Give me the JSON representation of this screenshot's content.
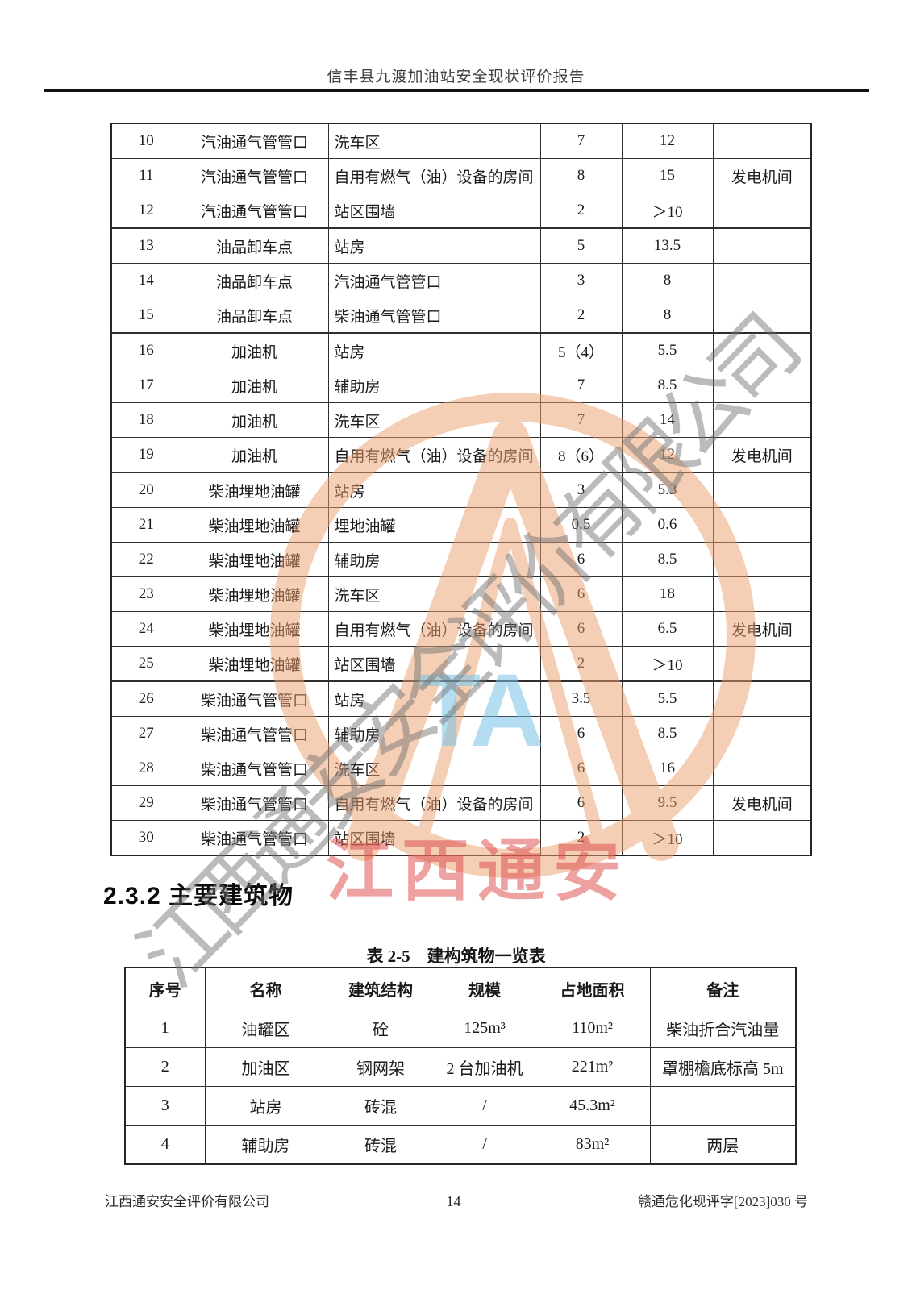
{
  "header": {
    "title": "信丰县九渡加油站安全现状评价报告"
  },
  "distance_table": {
    "columns": [
      "seq",
      "source",
      "target",
      "required",
      "actual",
      "note"
    ],
    "rows": [
      {
        "seq": "10",
        "source": "汽油通气管管口",
        "target": "洗车区",
        "required": "7",
        "actual": "12",
        "note": "",
        "group_end": false
      },
      {
        "seq": "11",
        "source": "汽油通气管管口",
        "target": "自用有燃气（油）设备的房间",
        "required": "8",
        "actual": "15",
        "note": "发电机间",
        "group_end": false
      },
      {
        "seq": "12",
        "source": "汽油通气管管口",
        "target": "站区围墙",
        "required": "2",
        "actual": "＞10",
        "note": "",
        "group_end": true
      },
      {
        "seq": "13",
        "source": "油品卸车点",
        "target": "站房",
        "required": "5",
        "actual": "13.5",
        "note": "",
        "group_end": false
      },
      {
        "seq": "14",
        "source": "油品卸车点",
        "target": "汽油通气管管口",
        "required": "3",
        "actual": "8",
        "note": "",
        "group_end": false
      },
      {
        "seq": "15",
        "source": "油品卸车点",
        "target": "柴油通气管管口",
        "required": "2",
        "actual": "8",
        "note": "",
        "group_end": true
      },
      {
        "seq": "16",
        "source": "加油机",
        "target": "站房",
        "required": "5（4）",
        "actual": "5.5",
        "note": "",
        "group_end": false
      },
      {
        "seq": "17",
        "source": "加油机",
        "target": "辅助房",
        "required": "7",
        "actual": "8.5",
        "note": "",
        "group_end": false
      },
      {
        "seq": "18",
        "source": "加油机",
        "target": "洗车区",
        "required": "7",
        "actual": "14",
        "note": "",
        "group_end": false
      },
      {
        "seq": "19",
        "source": "加油机",
        "target": "自用有燃气（油）设备的房间",
        "required": "8（6）",
        "actual": "12",
        "note": "发电机间",
        "group_end": true
      },
      {
        "seq": "20",
        "source": "柴油埋地油罐",
        "target": "站房",
        "required": "3",
        "actual": "5.3",
        "note": "",
        "group_end": false
      },
      {
        "seq": "21",
        "source": "柴油埋地油罐",
        "target": "埋地油罐",
        "required": "0.5",
        "actual": "0.6",
        "note": "",
        "group_end": false
      },
      {
        "seq": "22",
        "source": "柴油埋地油罐",
        "target": "辅助房",
        "required": "6",
        "actual": "8.5",
        "note": "",
        "group_end": false
      },
      {
        "seq": "23",
        "source": "柴油埋地油罐",
        "target": "洗车区",
        "required": "6",
        "actual": "18",
        "note": "",
        "group_end": false
      },
      {
        "seq": "24",
        "source": "柴油埋地油罐",
        "target": "自用有燃气（油）设备的房间",
        "required": "6",
        "actual": "6.5",
        "note": "发电机间",
        "group_end": false
      },
      {
        "seq": "25",
        "source": "柴油埋地油罐",
        "target": "站区围墙",
        "required": "2",
        "actual": "＞10",
        "note": "",
        "group_end": true
      },
      {
        "seq": "26",
        "source": "柴油通气管管口",
        "target": "站房",
        "required": "3.5",
        "actual": "5.5",
        "note": "",
        "group_end": false
      },
      {
        "seq": "27",
        "source": "柴油通气管管口",
        "target": "辅助房",
        "required": "6",
        "actual": "8.5",
        "note": "",
        "group_end": false
      },
      {
        "seq": "28",
        "source": "柴油通气管管口",
        "target": "洗车区",
        "required": "6",
        "actual": "16",
        "note": "",
        "group_end": false
      },
      {
        "seq": "29",
        "source": "柴油通气管管口",
        "target": "自用有燃气（油）设备的房间",
        "required": "6",
        "actual": "9.5",
        "note": "发电机间",
        "group_end": false
      },
      {
        "seq": "30",
        "source": "柴油通气管管口",
        "target": "站区围墙",
        "required": "2",
        "actual": "＞10",
        "note": "",
        "group_end": false
      }
    ]
  },
  "section_heading": {
    "text": "2.3.2 主要建筑物"
  },
  "buildings_table": {
    "title": "表 2-5　建构筑物一览表",
    "headers": [
      "序号",
      "名称",
      "建筑结构",
      "规模",
      "占地面积",
      "备注"
    ],
    "rows": [
      {
        "seq": "1",
        "name": "油罐区",
        "structure": "砼",
        "scale": "125m³",
        "area": "110m²",
        "note": "柴油折合汽油量"
      },
      {
        "seq": "2",
        "name": "加油区",
        "structure": "钢网架",
        "scale": "2 台加油机",
        "area": "221m²",
        "note": "罩棚檐底标高 5m"
      },
      {
        "seq": "3",
        "name": "站房",
        "structure": "砖混",
        "scale": "/",
        "area": "45.3m²",
        "note": ""
      },
      {
        "seq": "4",
        "name": "辅助房",
        "structure": "砖混",
        "scale": "/",
        "area": "83m²",
        "note": "两层"
      }
    ]
  },
  "footer": {
    "company": "江西通安安全评价有限公司",
    "page_number": "14",
    "doc_number": "赣通危化现评字[2023]030 号"
  },
  "watermark": {
    "diagonal_text": "江西通安安全评价有限公司",
    "stamp_text": "江西通安",
    "logo_letters": "TA",
    "colors": {
      "logo_orange": "#EDA06E",
      "stamp_red": "#DC4646",
      "letters_blue": "#78C3E6",
      "diagonal_gray": "#737373"
    }
  }
}
